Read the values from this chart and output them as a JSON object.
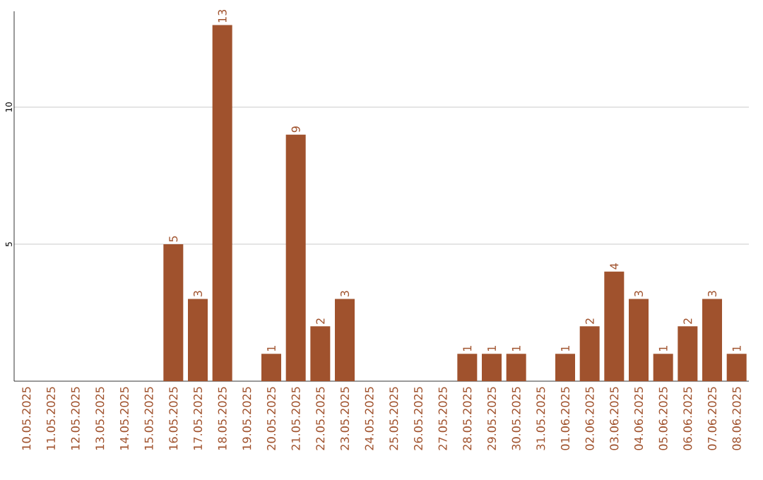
{
  "chart_data": {
    "type": "bar",
    "categories": [
      "10.05.2025",
      "11.05.2025",
      "12.05.2025",
      "13.05.2025",
      "14.05.2025",
      "15.05.2025",
      "16.05.2025",
      "17.05.2025",
      "18.05.2025",
      "19.05.2025",
      "20.05.2025",
      "21.05.2025",
      "22.05.2025",
      "23.05.2025",
      "24.05.2025",
      "25.05.2025",
      "26.05.2025",
      "27.05.2025",
      "28.05.2025",
      "29.05.2025",
      "30.05.2025",
      "31.05.2025",
      "01.06.2025",
      "02.06.2025",
      "03.06.2025",
      "04.06.2025",
      "05.06.2025",
      "06.06.2025",
      "07.06.2025",
      "08.06.2025"
    ],
    "values": [
      0,
      0,
      0,
      0,
      0,
      0,
      5,
      3,
      13,
      0,
      1,
      9,
      2,
      3,
      0,
      0,
      0,
      0,
      1,
      1,
      1,
      0,
      1,
      2,
      4,
      3,
      1,
      2,
      3,
      1
    ],
    "value_labels": [
      null,
      null,
      null,
      null,
      null,
      null,
      "5",
      "3",
      "13",
      null,
      "1",
      "9",
      "2",
      "3",
      null,
      null,
      null,
      null,
      "1",
      "1",
      "1",
      null,
      "1",
      "2",
      "4",
      "3",
      "1",
      "2",
      "3",
      "1"
    ],
    "color": "#a0522d",
    "ylim": [
      0,
      13.5
    ],
    "yticks": [
      5,
      10
    ],
    "grid": "y"
  }
}
